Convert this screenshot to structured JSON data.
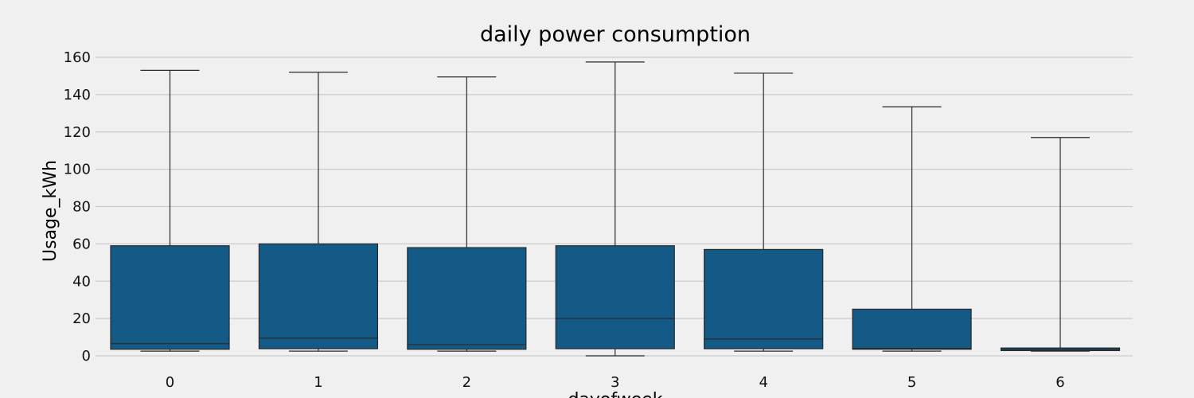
{
  "chart_data": {
    "type": "box",
    "title": "daily power consumption",
    "xlabel": "dayofweek",
    "ylabel": "Usage_kWh",
    "ylim": [
      0,
      160
    ],
    "yticks": [
      0,
      20,
      40,
      60,
      80,
      100,
      120,
      140,
      160
    ],
    "categories": [
      "0",
      "1",
      "2",
      "3",
      "4",
      "5",
      "6"
    ],
    "boxes": [
      {
        "category": "0",
        "whislo": 2.5,
        "q1": 3.5,
        "median": 6.5,
        "q3": 59.0,
        "whishi": 153.0
      },
      {
        "category": "1",
        "whislo": 2.5,
        "q1": 3.8,
        "median": 9.5,
        "q3": 60.0,
        "whishi": 152.0
      },
      {
        "category": "2",
        "whislo": 2.5,
        "q1": 3.5,
        "median": 6.0,
        "q3": 58.0,
        "whishi": 149.5
      },
      {
        "category": "3",
        "whislo": 0.0,
        "q1": 3.8,
        "median": 20.0,
        "q3": 59.0,
        "whishi": 157.5
      },
      {
        "category": "4",
        "whislo": 2.5,
        "q1": 3.8,
        "median": 9.0,
        "q3": 57.0,
        "whishi": 151.5
      },
      {
        "category": "5",
        "whislo": 2.5,
        "q1": 3.5,
        "median": 4.0,
        "q3": 25.0,
        "whishi": 133.5
      },
      {
        "category": "6",
        "whislo": 2.5,
        "q1": 2.8,
        "median": 3.5,
        "q3": 4.2,
        "whishi": 117.0
      }
    ],
    "box_color": "#135a86",
    "grid": true,
    "background": "#f0f0f0"
  }
}
